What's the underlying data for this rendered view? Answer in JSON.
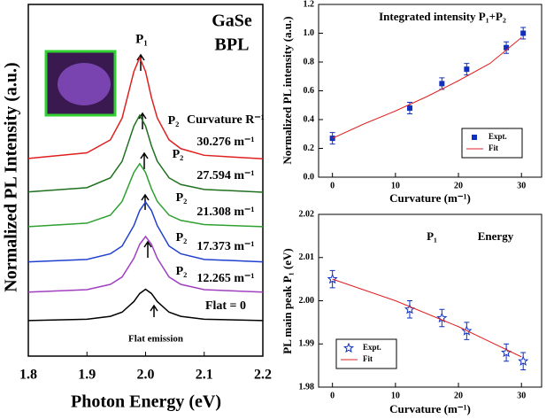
{
  "chart_data": [
    {
      "type": "line",
      "x_label": "Photon Energy (eV)",
      "y_label": "Normalized PL Intensity (a.u.)",
      "xlim": [
        1.8,
        2.2
      ],
      "xticks": [
        1.8,
        1.9,
        {
          "value": 2,
          "label": "2.0"
        },
        2.1,
        2.2
      ],
      "ylim": [
        0,
        10
      ],
      "x": [
        1.8,
        1.9,
        1.94,
        1.96,
        1.98,
        1.99,
        2.0,
        2.01,
        2.02,
        2.04,
        2.06,
        2.1,
        2.2
      ],
      "series": [
        {
          "name": "30.276 m⁻¹",
          "color": "#e02020",
          "values": [
            5.62,
            5.78,
            6.15,
            6.77,
            8.09,
            8.49,
            8.09,
            7.35,
            6.77,
            6.15,
            5.9,
            5.71,
            5.61
          ]
        },
        {
          "name": "27.594 m⁻¹",
          "color": "#207020",
          "values": [
            4.67,
            4.79,
            5.07,
            5.54,
            6.54,
            6.85,
            6.54,
            5.98,
            5.54,
            5.07,
            4.88,
            4.74,
            4.66
          ]
        },
        {
          "name": "21.308 m⁻¹",
          "color": "#30a030",
          "values": [
            3.68,
            3.78,
            4.01,
            4.4,
            5.22,
            5.47,
            5.22,
            4.76,
            4.4,
            4.01,
            3.86,
            3.74,
            3.68
          ]
        },
        {
          "name": "17.373 m⁻¹",
          "color": "#2040d0",
          "values": [
            2.68,
            2.75,
            2.91,
            3.13,
            3.71,
            4.14,
            4.38,
            4.14,
            3.71,
            3.13,
            2.91,
            2.75,
            2.68
          ]
        },
        {
          "name": "12.265 m⁻¹",
          "color": "#a040c0",
          "values": [
            1.82,
            1.89,
            2.04,
            2.25,
            2.78,
            3.18,
            3.4,
            3.18,
            2.78,
            2.25,
            2.04,
            1.89,
            1.82
          ]
        },
        {
          "name": "Flat = 0",
          "color": "#000000",
          "values": [
            1.01,
            1.05,
            1.13,
            1.25,
            1.55,
            1.78,
            1.9,
            1.78,
            1.55,
            1.25,
            1.13,
            1.05,
            1.01
          ]
        }
      ],
      "annotations": [
        "GaSe",
        "BPL",
        "P₁",
        "Curvature R⁻¹",
        "P₂",
        "P₂",
        "P₂",
        "P₂",
        "P₂",
        "Flat emission"
      ]
    },
    {
      "type": "scatter",
      "title": "Integrated intensity P₁+P₂",
      "x_label": "Curvature (m⁻¹)",
      "y_label": "Normalized PL intensity (a.u.)",
      "xlim": [
        -2.2,
        33.2
      ],
      "xticks": [
        0,
        10,
        20,
        30
      ],
      "ylim": [
        0,
        1.2
      ],
      "yticks": [
        {
          "value": 0,
          "label": "0.0"
        },
        0.2,
        0.4,
        0.6,
        0.8,
        {
          "value": 1,
          "label": "1.0"
        },
        1.2
      ],
      "legend": "lower right",
      "series": [
        {
          "name": "Expt.",
          "color": "#1030c0",
          "marker": "square",
          "x": [
            0,
            12.265,
            17.373,
            21.308,
            27.594,
            30.276
          ],
          "values": [
            0.27,
            0.48,
            0.65,
            0.75,
            0.9,
            1.0
          ],
          "errors": [
            0.04,
            0.04,
            0.04,
            0.04,
            0.04,
            0.04
          ]
        },
        {
          "name": "Fit",
          "color": "#e02020",
          "x": [
            0,
            5,
            10,
            15,
            20,
            25,
            30
          ],
          "values": [
            0.27,
            0.37,
            0.46,
            0.56,
            0.67,
            0.79,
            0.97
          ]
        }
      ]
    },
    {
      "type": "scatter",
      "x_label": "Curvature (m⁻¹)",
      "y_label": "PL main peak P₁ (eV)",
      "xlim": [
        -2.2,
        33.2
      ],
      "xticks": [
        0,
        10,
        20,
        30
      ],
      "ylim": [
        1.98,
        2.02
      ],
      "yticks": [
        1.98,
        1.99,
        {
          "value": 2,
          "label": "2.00"
        },
        2.01,
        2.02
      ],
      "legend": "lower left",
      "series": [
        {
          "name": "Expt.",
          "color": "#1030c0",
          "marker": "star",
          "x": [
            0,
            12.265,
            17.373,
            21.308,
            27.594,
            30.276
          ],
          "values": [
            2.005,
            1.998,
            1.996,
            1.993,
            1.988,
            1.986
          ],
          "errors": [
            0.002,
            0.002,
            0.002,
            0.002,
            0.002,
            0.002
          ]
        },
        {
          "name": "Fit",
          "color": "#e02020",
          "x": [
            0,
            10,
            20,
            30
          ],
          "values": [
            2.005,
            2.0,
            1.994,
            1.987
          ]
        }
      ],
      "annotations": [
        "P₁",
        "Energy"
      ]
    }
  ]
}
